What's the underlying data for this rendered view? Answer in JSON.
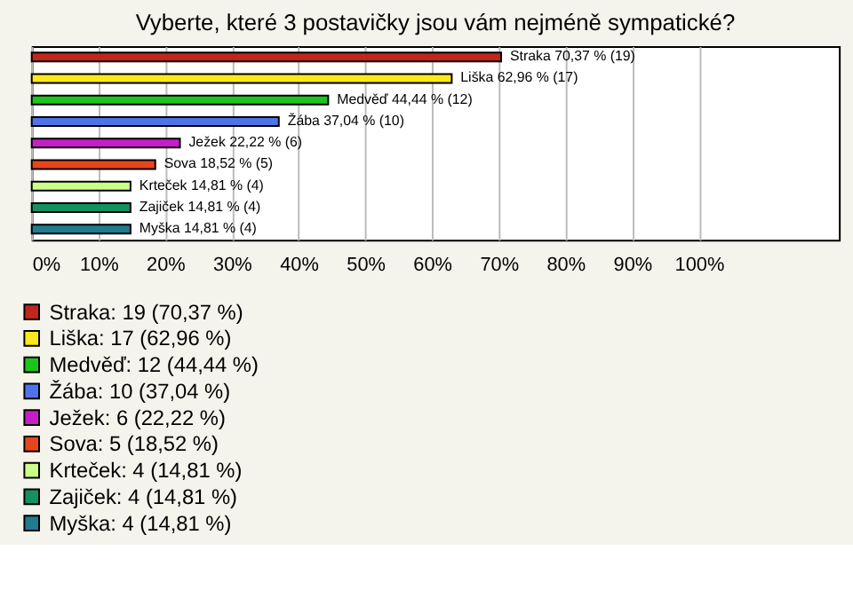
{
  "chart_data": {
    "type": "bar",
    "orientation": "horizontal",
    "title": "Vyberte, které 3 postavičky jsou vám nejméně sympatické?",
    "categories": [
      "Straka 70,37 % (19)",
      "Liška 62,96 % (17)",
      "Medvěď 44,44 % (12)",
      "Žába 37,04 % (10)",
      "Ježek 22,22 % (6)",
      "Sova 18,52 % (5)",
      "Krteček 14,81 % (4)",
      "Zajiček 14,81 % (4)",
      "Myška 14,81 % (4)"
    ],
    "series": [
      {
        "name": "Straka: 19 (70,37 %)",
        "color": "#c0261a",
        "values": [
          70.37,
          null,
          null,
          null,
          null,
          null,
          null,
          null,
          null
        ]
      },
      {
        "name": "Liška: 17 (62,96 %)",
        "color": "#ffe81a",
        "values": [
          null,
          62.96,
          null,
          null,
          null,
          null,
          null,
          null,
          null
        ]
      },
      {
        "name": "Medvěď: 12 (44,44 %)",
        "color": "#1ec41e",
        "values": [
          null,
          null,
          44.44,
          null,
          null,
          null,
          null,
          null,
          null
        ]
      },
      {
        "name": "Žába: 10 (37,04 %)",
        "color": "#4f74e8",
        "values": [
          null,
          null,
          null,
          37.04,
          null,
          null,
          null,
          null,
          null
        ]
      },
      {
        "name": "Ježek: 6 (22,22 %)",
        "color": "#c61ec6",
        "values": [
          null,
          null,
          null,
          null,
          22.22,
          null,
          null,
          null,
          null
        ]
      },
      {
        "name": "Sova: 5 (18,52 %)",
        "color": "#e8461a",
        "values": [
          null,
          null,
          null,
          null,
          null,
          18.52,
          null,
          null,
          null
        ]
      },
      {
        "name": "Krteček: 4 (14,81 %)",
        "color": "#ccff88",
        "values": [
          null,
          null,
          null,
          null,
          null,
          null,
          14.81,
          null,
          null
        ]
      },
      {
        "name": "Zajiček: 4 (14,81 %)",
        "color": "#159060",
        "values": [
          null,
          null,
          null,
          null,
          null,
          null,
          null,
          14.81,
          null
        ]
      },
      {
        "name": "Myška: 4 (14,81 %)",
        "color": "#207a90",
        "values": [
          null,
          null,
          null,
          null,
          null,
          null,
          null,
          null,
          14.81
        ]
      }
    ],
    "xlim": [
      0,
      121
    ],
    "xticks": [
      {
        "value": 0,
        "label": "0%"
      },
      {
        "value": 10,
        "label": "10%"
      },
      {
        "value": 20,
        "label": "20%"
      },
      {
        "value": 30,
        "label": "30%"
      },
      {
        "value": 40,
        "label": "40%"
      },
      {
        "value": 50,
        "label": "50%"
      },
      {
        "value": 60,
        "label": "60%"
      },
      {
        "value": 70,
        "label": "70%"
      },
      {
        "value": 80,
        "label": "80%"
      },
      {
        "value": 90,
        "label": "90%"
      },
      {
        "value": 100,
        "label": "100%"
      }
    ],
    "grid": "x",
    "legend": "bottom"
  }
}
